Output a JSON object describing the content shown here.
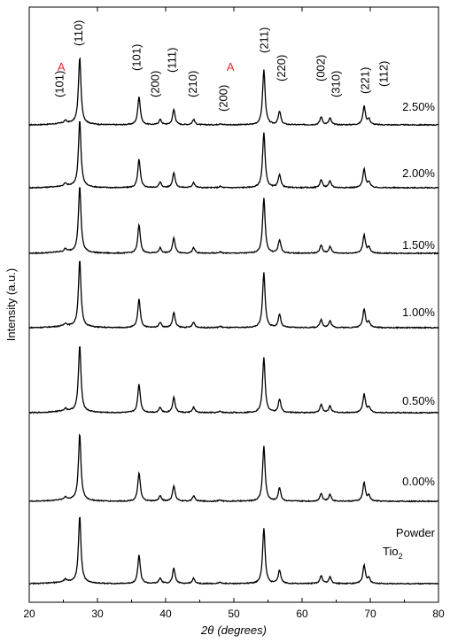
{
  "chart_data": {
    "type": "line",
    "xlabel_symbol": "2θ",
    "xlabel_unit": "(degrees)",
    "ylabel": "Intensity (a.u.)",
    "xlim": [
      20,
      80
    ],
    "x_ticks": [
      20,
      30,
      40,
      50,
      60,
      70,
      80
    ],
    "y_tick_labels": "none",
    "grid": false,
    "legend": "none (series labelled inline at right)",
    "colors": {
      "line": "#000000",
      "anatase_marker": "#e8262b"
    },
    "peak_labels": [
      {
        "text": "A",
        "x": 24.7,
        "color": "#e8262b",
        "orientation": "horizontal"
      },
      {
        "text": "(101)",
        "x": 24.5,
        "orientation": "vertical"
      },
      {
        "text": "(110)",
        "x": 27.3,
        "orientation": "vertical"
      },
      {
        "text": "(101)",
        "x": 35.8,
        "orientation": "vertical"
      },
      {
        "text": "(200)",
        "x": 38.5,
        "orientation": "vertical"
      },
      {
        "text": "(111)",
        "x": 41.0,
        "orientation": "vertical"
      },
      {
        "text": "(210)",
        "x": 44.0,
        "orientation": "vertical"
      },
      {
        "text": "A",
        "x": 49.5,
        "color": "#e8262b",
        "orientation": "horizontal"
      },
      {
        "text": "(200)",
        "x": 48.5,
        "orientation": "vertical"
      },
      {
        "text": "(211)",
        "x": 54.5,
        "orientation": "vertical"
      },
      {
        "text": "(220)",
        "x": 57.0,
        "orientation": "vertical"
      },
      {
        "text": "(002)",
        "x": 62.8,
        "orientation": "vertical"
      },
      {
        "text": "(310)",
        "x": 65.0,
        "orientation": "vertical"
      },
      {
        "text": "(221)",
        "x": 69.3,
        "orientation": "vertical"
      },
      {
        "text": "(112)",
        "x": 72.0,
        "orientation": "vertical"
      }
    ],
    "series": [
      {
        "name": "2.50%",
        "intensity_scale": 1.0,
        "peaks": [
          [
            25.3,
            0.04
          ],
          [
            27.4,
            1.0
          ],
          [
            36.1,
            0.43
          ],
          [
            39.2,
            0.08
          ],
          [
            41.2,
            0.23
          ],
          [
            44.1,
            0.08
          ],
          [
            48.0,
            0.02
          ],
          [
            54.4,
            0.83
          ],
          [
            56.7,
            0.2
          ],
          [
            62.8,
            0.12
          ],
          [
            64.1,
            0.1
          ],
          [
            69.1,
            0.28
          ],
          [
            69.8,
            0.08
          ]
        ]
      },
      {
        "name": "2.00%",
        "intensity_scale": 1.0,
        "peaks": [
          [
            25.3,
            0.04
          ],
          [
            27.4,
            1.0
          ],
          [
            36.1,
            0.43
          ],
          [
            39.2,
            0.08
          ],
          [
            41.2,
            0.23
          ],
          [
            44.1,
            0.08
          ],
          [
            48.0,
            0.02
          ],
          [
            54.4,
            0.83
          ],
          [
            56.7,
            0.2
          ],
          [
            62.8,
            0.12
          ],
          [
            64.1,
            0.1
          ],
          [
            69.1,
            0.28
          ],
          [
            69.8,
            0.08
          ]
        ]
      },
      {
        "name": "1.50%",
        "intensity_scale": 1.0,
        "peaks": [
          [
            25.3,
            0.04
          ],
          [
            27.4,
            1.0
          ],
          [
            36.1,
            0.43
          ],
          [
            39.2,
            0.08
          ],
          [
            41.2,
            0.23
          ],
          [
            44.1,
            0.08
          ],
          [
            48.0,
            0.02
          ],
          [
            54.4,
            0.83
          ],
          [
            56.7,
            0.2
          ],
          [
            62.8,
            0.12
          ],
          [
            64.1,
            0.1
          ],
          [
            69.1,
            0.28
          ],
          [
            69.8,
            0.08
          ]
        ]
      },
      {
        "name": "1.00%",
        "intensity_scale": 1.0,
        "peaks": [
          [
            25.3,
            0.04
          ],
          [
            27.4,
            1.0
          ],
          [
            36.1,
            0.43
          ],
          [
            39.2,
            0.08
          ],
          [
            41.2,
            0.23
          ],
          [
            44.1,
            0.08
          ],
          [
            48.0,
            0.02
          ],
          [
            54.4,
            0.83
          ],
          [
            56.7,
            0.2
          ],
          [
            62.8,
            0.12
          ],
          [
            64.1,
            0.1
          ],
          [
            69.1,
            0.28
          ],
          [
            69.8,
            0.08
          ]
        ]
      },
      {
        "name": "0.50%",
        "intensity_scale": 1.0,
        "peaks": [
          [
            25.3,
            0.04
          ],
          [
            27.4,
            1.0
          ],
          [
            36.1,
            0.43
          ],
          [
            39.2,
            0.08
          ],
          [
            41.2,
            0.23
          ],
          [
            44.1,
            0.08
          ],
          [
            48.0,
            0.02
          ],
          [
            54.4,
            0.83
          ],
          [
            56.7,
            0.2
          ],
          [
            62.8,
            0.12
          ],
          [
            64.1,
            0.1
          ],
          [
            69.1,
            0.28
          ],
          [
            69.8,
            0.08
          ]
        ]
      },
      {
        "name": "0.00%",
        "intensity_scale": 1.0,
        "peaks": [
          [
            25.3,
            0.04
          ],
          [
            27.4,
            1.0
          ],
          [
            36.1,
            0.43
          ],
          [
            39.2,
            0.08
          ],
          [
            41.2,
            0.23
          ],
          [
            44.1,
            0.08
          ],
          [
            48.0,
            0.02
          ],
          [
            54.4,
            0.83
          ],
          [
            56.7,
            0.2
          ],
          [
            62.8,
            0.12
          ],
          [
            64.1,
            0.1
          ],
          [
            69.1,
            0.28
          ],
          [
            69.8,
            0.08
          ]
        ]
      },
      {
        "name": "Powder",
        "name_line2": "Tio",
        "name_line2_subscript": "2",
        "intensity_scale": 1.0,
        "peaks": [
          [
            25.3,
            0.04
          ],
          [
            27.4,
            1.0
          ],
          [
            36.1,
            0.43
          ],
          [
            39.2,
            0.08
          ],
          [
            41.2,
            0.23
          ],
          [
            44.1,
            0.08
          ],
          [
            48.0,
            0.02
          ],
          [
            54.4,
            0.83
          ],
          [
            56.7,
            0.2
          ],
          [
            62.8,
            0.12
          ],
          [
            64.1,
            0.1
          ],
          [
            69.1,
            0.28
          ],
          [
            69.8,
            0.08
          ]
        ]
      }
    ]
  }
}
